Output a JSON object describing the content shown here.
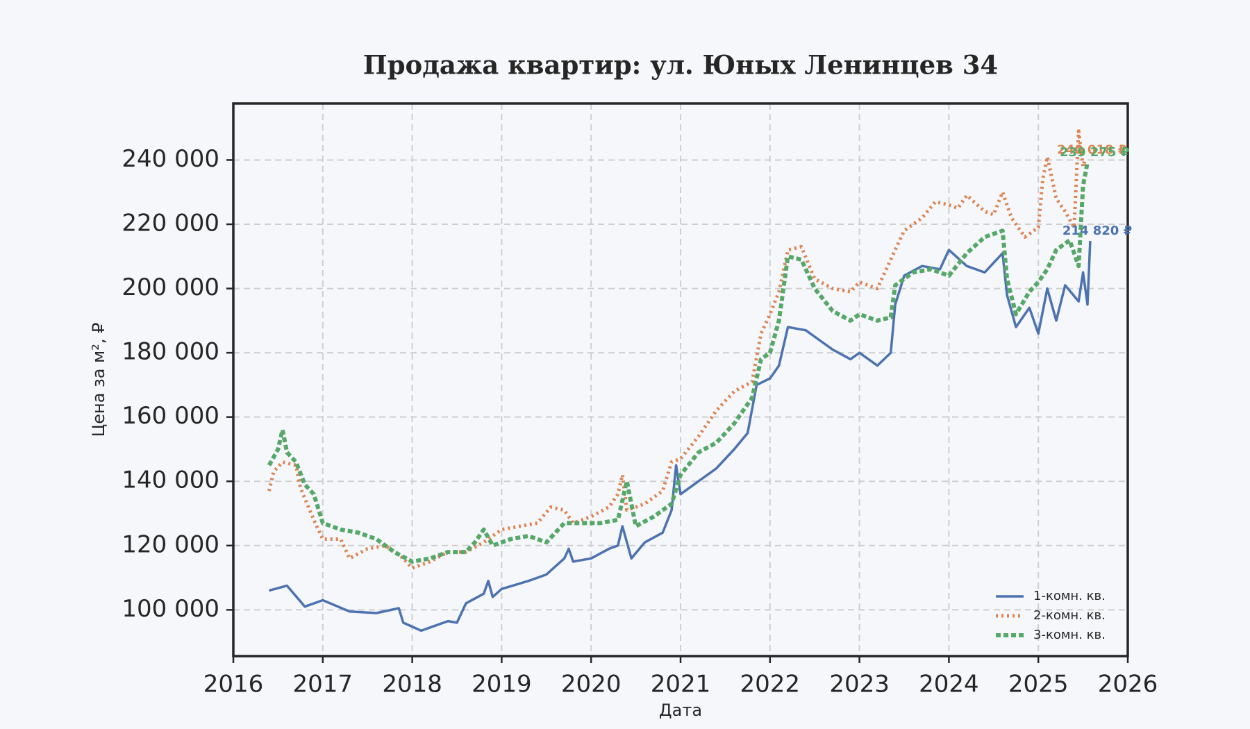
{
  "chart_data": {
    "type": "line",
    "title": "Продажа квартир: ул. Юных Ленинцев 34",
    "x_label": "Дата",
    "y_label": "Цена за м², ₽",
    "xlim": [
      2016,
      2026
    ],
    "xticks": [
      2016,
      2017,
      2018,
      2019,
      2020,
      2021,
      2022,
      2023,
      2024,
      2025,
      2026
    ],
    "ylim": [
      85600,
      257600
    ],
    "yticks": [
      {
        "value": 100000,
        "label": "100 000"
      },
      {
        "value": 120000,
        "label": "120 000"
      },
      {
        "value": 140000,
        "label": "140 000"
      },
      {
        "value": 160000,
        "label": "160 000"
      },
      {
        "value": 180000,
        "label": "180 000"
      },
      {
        "value": 200000,
        "label": "200 000"
      },
      {
        "value": 220000,
        "label": "220 000"
      },
      {
        "value": 240000,
        "label": "240 000"
      }
    ],
    "grid": true,
    "legend_position": "lower right",
    "series": [
      {
        "name": "1-комн. кв.",
        "color": "#4c72b0",
        "linestyle": "solid",
        "end_label": "214 820 ₽",
        "x": [
          2016.4,
          2016.6,
          2016.8,
          2017.0,
          2017.3,
          2017.6,
          2017.85,
          2017.9,
          2018.1,
          2018.4,
          2018.5,
          2018.6,
          2018.8,
          2018.85,
          2018.9,
          2019.0,
          2019.3,
          2019.5,
          2019.7,
          2019.75,
          2019.8,
          2020.0,
          2020.2,
          2020.3,
          2020.35,
          2020.45,
          2020.6,
          2020.8,
          2020.9,
          2020.95,
          2021.0,
          2021.2,
          2021.4,
          2021.6,
          2021.75,
          2021.85,
          2022.0,
          2022.1,
          2022.2,
          2022.4,
          2022.5,
          2022.7,
          2022.9,
          2023.0,
          2023.2,
          2023.35,
          2023.4,
          2023.5,
          2023.7,
          2023.9,
          2024.0,
          2024.2,
          2024.4,
          2024.6,
          2024.65,
          2024.75,
          2024.9,
          2025.0,
          2025.1,
          2025.2,
          2025.3,
          2025.45,
          2025.5,
          2025.55,
          2025.58
        ],
        "values": [
          106000,
          107500,
          101000,
          103000,
          99500,
          99000,
          100500,
          96000,
          93500,
          96500,
          96000,
          102000,
          105000,
          109000,
          104000,
          106500,
          109000,
          111000,
          116000,
          119000,
          115000,
          116000,
          119000,
          120000,
          126000,
          116000,
          121000,
          124000,
          131000,
          145000,
          136000,
          140000,
          144000,
          150000,
          155000,
          170000,
          172000,
          176000,
          188000,
          187000,
          185000,
          181000,
          178000,
          180000,
          176000,
          180000,
          195000,
          204000,
          207000,
          206000,
          212000,
          207000,
          205000,
          211000,
          198000,
          188000,
          194000,
          186000,
          200000,
          190000,
          201000,
          196000,
          205000,
          195000,
          214820
        ]
      },
      {
        "name": "2-комн. кв.",
        "color": "#dd8452",
        "linestyle": "dotted",
        "end_label": "240 018 ₽",
        "x": [
          2016.4,
          2016.45,
          2016.55,
          2016.7,
          2016.75,
          2016.9,
          2017.0,
          2017.2,
          2017.3,
          2017.5,
          2017.7,
          2017.9,
          2018.0,
          2018.2,
          2018.4,
          2018.6,
          2018.8,
          2019.0,
          2019.2,
          2019.4,
          2019.55,
          2019.7,
          2019.8,
          2020.0,
          2020.2,
          2020.3,
          2020.35,
          2020.4,
          2020.6,
          2020.8,
          2020.9,
          2021.0,
          2021.2,
          2021.4,
          2021.6,
          2021.8,
          2021.9,
          2022.0,
          2022.1,
          2022.2,
          2022.35,
          2022.5,
          2022.7,
          2022.9,
          2023.0,
          2023.2,
          2023.3,
          2023.4,
          2023.5,
          2023.7,
          2023.85,
          2024.0,
          2024.1,
          2024.2,
          2024.4,
          2024.5,
          2024.6,
          2024.7,
          2024.85,
          2025.0,
          2025.05,
          2025.1,
          2025.2,
          2025.3,
          2025.4,
          2025.45,
          2025.5,
          2025.52
        ],
        "values": [
          137000,
          143000,
          146000,
          145000,
          138000,
          128000,
          122000,
          122000,
          116000,
          119000,
          120000,
          116000,
          113000,
          115000,
          118000,
          118000,
          121000,
          125000,
          126000,
          127000,
          132000,
          131000,
          127000,
          129000,
          132000,
          136000,
          142000,
          131000,
          133000,
          137000,
          146000,
          147000,
          154000,
          162000,
          168000,
          171000,
          186000,
          192000,
          199000,
          212000,
          213000,
          203000,
          200000,
          199000,
          202000,
          200000,
          206000,
          212000,
          218000,
          222000,
          227000,
          226000,
          225000,
          229000,
          224000,
          223000,
          230000,
          222000,
          216000,
          219000,
          234000,
          241000,
          228000,
          224000,
          219000,
          249000,
          238000,
          240018
        ]
      },
      {
        "name": "3-комн. кв.",
        "color": "#55a868",
        "linestyle": "dashed",
        "end_label": "239 275 ₽",
        "x": [
          2016.4,
          2016.5,
          2016.55,
          2016.6,
          2016.7,
          2016.8,
          2016.9,
          2017.0,
          2017.2,
          2017.4,
          2017.6,
          2017.8,
          2018.0,
          2018.2,
          2018.4,
          2018.6,
          2018.7,
          2018.8,
          2018.9,
          2019.1,
          2019.3,
          2019.5,
          2019.7,
          2019.9,
          2020.1,
          2020.3,
          2020.4,
          2020.5,
          2020.7,
          2020.9,
          2021.0,
          2021.2,
          2021.4,
          2021.6,
          2021.8,
          2021.9,
          2022.0,
          2022.1,
          2022.2,
          2022.35,
          2022.5,
          2022.7,
          2022.9,
          2023.0,
          2023.2,
          2023.35,
          2023.4,
          2023.6,
          2023.8,
          2024.0,
          2024.2,
          2024.4,
          2024.6,
          2024.65,
          2024.75,
          2024.9,
          2025.0,
          2025.1,
          2025.2,
          2025.35,
          2025.45,
          2025.5,
          2025.55
        ],
        "values": [
          145000,
          150000,
          156000,
          149000,
          146000,
          139000,
          136000,
          127000,
          125000,
          124000,
          122000,
          118000,
          115000,
          116000,
          118000,
          118000,
          121000,
          125000,
          120000,
          122000,
          123000,
          121000,
          127000,
          127000,
          127000,
          128000,
          140000,
          126000,
          129000,
          133000,
          142000,
          149000,
          152000,
          158000,
          166000,
          178000,
          180000,
          190000,
          210000,
          209000,
          200000,
          193000,
          190000,
          192000,
          190000,
          191000,
          201000,
          205000,
          206000,
          204000,
          211000,
          216000,
          218000,
          203000,
          192000,
          199000,
          202000,
          206000,
          212000,
          215000,
          207000,
          232000,
          239275
        ]
      }
    ]
  }
}
